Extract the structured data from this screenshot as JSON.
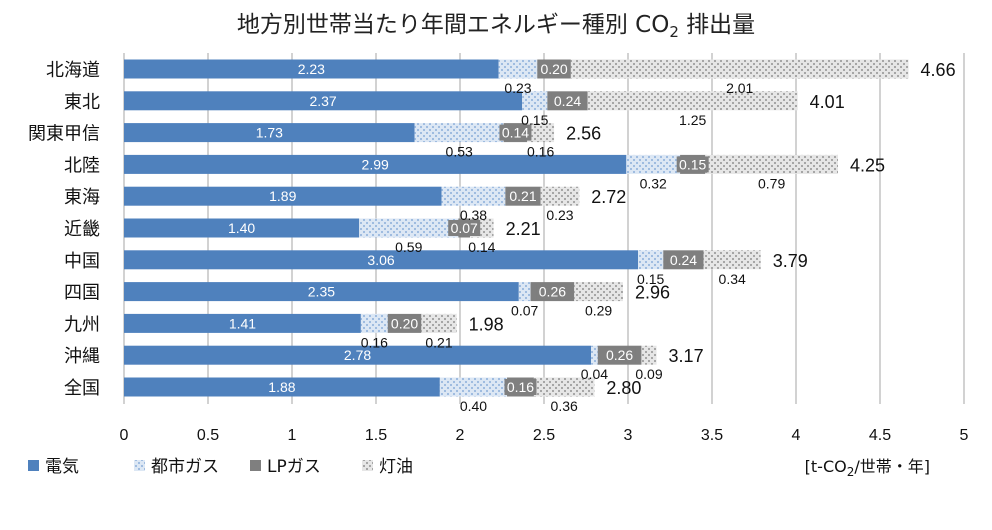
{
  "chart_data": {
    "type": "bar",
    "orientation": "horizontal",
    "stacked": true,
    "title_parts": {
      "main": "地方別世帯当たり年間エネルギー種別 CO",
      "sub": "2",
      "tail": " 排出量"
    },
    "unit_parts": {
      "pre": "[t-CO",
      "sub": "2",
      "post": "/世帯・年]"
    },
    "categories": [
      "北海道",
      "東北",
      "関東甲信",
      "北陸",
      "東海",
      "近畿",
      "中国",
      "四国",
      "九州",
      "沖縄",
      "全国"
    ],
    "series": [
      {
        "name": "電気",
        "color": "#4f81bd",
        "values": [
          2.23,
          2.37,
          1.73,
          2.99,
          1.89,
          1.4,
          3.06,
          2.35,
          1.41,
          2.78,
          1.88
        ]
      },
      {
        "name": "都市ガス",
        "color": "#b9cde8",
        "values": [
          0.23,
          0.15,
          0.53,
          0.32,
          0.38,
          0.59,
          0.15,
          0.07,
          0.16,
          0.04,
          0.4
        ]
      },
      {
        "name": "LPガス",
        "color": "#7f7f7f",
        "values": [
          0.2,
          0.24,
          0.14,
          0.15,
          0.21,
          0.07,
          0.24,
          0.26,
          0.2,
          0.26,
          0.16
        ]
      },
      {
        "name": "灯油",
        "color": "#c8c8c8",
        "values": [
          2.01,
          1.25,
          0.16,
          0.79,
          0.23,
          0.14,
          0.34,
          0.29,
          0.21,
          0.09,
          0.36
        ]
      }
    ],
    "totals": [
      4.66,
      4.01,
      2.56,
      4.25,
      2.72,
      2.21,
      3.79,
      2.96,
      1.98,
      3.17,
      2.8
    ],
    "xlim": [
      0,
      5
    ],
    "xticks": [
      "0",
      "0.5",
      "1",
      "1.5",
      "2",
      "2.5",
      "3",
      "3.5",
      "4",
      "4.5",
      "5"
    ],
    "grid": true,
    "legend_position": "bottom-left"
  }
}
